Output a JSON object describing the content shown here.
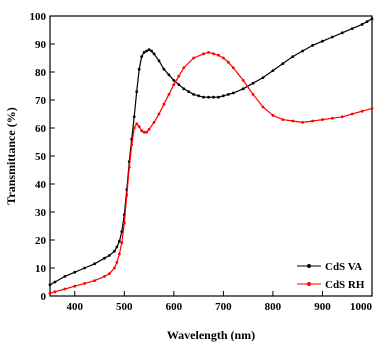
{
  "chart_data": {
    "type": "line",
    "xlabel": "Wavelength (nm)",
    "ylabel": "Transmittance (%)",
    "xlim": [
      350,
      1000
    ],
    "ylim": [
      0,
      100
    ],
    "xticks": [
      400,
      500,
      600,
      700,
      800,
      900,
      1000
    ],
    "yticks": [
      0,
      10,
      20,
      30,
      40,
      50,
      60,
      70,
      80,
      90,
      100
    ],
    "grid": false,
    "legend_position": "bottom-right",
    "series": [
      {
        "name": "CdS VA",
        "color": "#000000",
        "marker": "circle",
        "x": [
          350,
          360,
          380,
          400,
          420,
          440,
          460,
          470,
          480,
          485,
          490,
          495,
          500,
          505,
          510,
          515,
          520,
          525,
          530,
          535,
          540,
          545,
          550,
          555,
          560,
          570,
          580,
          590,
          600,
          610,
          620,
          630,
          640,
          650,
          660,
          670,
          680,
          690,
          700,
          710,
          720,
          740,
          760,
          780,
          800,
          820,
          840,
          860,
          880,
          900,
          920,
          940,
          960,
          980,
          990,
          1000
        ],
        "y": [
          4,
          5,
          7,
          8.5,
          10,
          11.5,
          13.5,
          14.5,
          16,
          17.5,
          19.5,
          23,
          29,
          38,
          48,
          56,
          64,
          73,
          81,
          85.5,
          87,
          87.5,
          88,
          87.5,
          86.5,
          84,
          81,
          79,
          77,
          75.5,
          74,
          73,
          72,
          71.5,
          71,
          71,
          71,
          71,
          71.5,
          72,
          72.5,
          74,
          76,
          78,
          80.5,
          83,
          85.5,
          87.5,
          89.5,
          91,
          92.5,
          94,
          95.5,
          97,
          98,
          99
        ]
      },
      {
        "name": "CdS RH",
        "color": "#ff0000",
        "marker": "circle",
        "x": [
          350,
          360,
          380,
          400,
          420,
          440,
          460,
          470,
          480,
          485,
          490,
          495,
          500,
          505,
          510,
          515,
          520,
          525,
          530,
          535,
          540,
          545,
          550,
          560,
          570,
          580,
          590,
          600,
          610,
          620,
          640,
          660,
          670,
          680,
          690,
          700,
          710,
          720,
          740,
          760,
          780,
          800,
          820,
          840,
          860,
          880,
          900,
          920,
          940,
          960,
          980,
          1000
        ],
        "y": [
          1,
          1.5,
          2.5,
          3.5,
          4.5,
          5.5,
          7,
          8,
          10,
          12,
          15,
          19,
          26,
          36,
          46,
          54,
          60,
          61.5,
          60.5,
          59,
          58.5,
          58.5,
          59.5,
          62,
          65,
          68.5,
          72,
          75.5,
          78.5,
          81.5,
          85,
          86.5,
          87,
          86.5,
          86,
          85,
          83.5,
          81.5,
          77,
          72,
          67.5,
          64.5,
          63,
          62.5,
          62,
          62.5,
          63,
          63.5,
          64,
          65,
          66,
          67
        ]
      }
    ]
  }
}
